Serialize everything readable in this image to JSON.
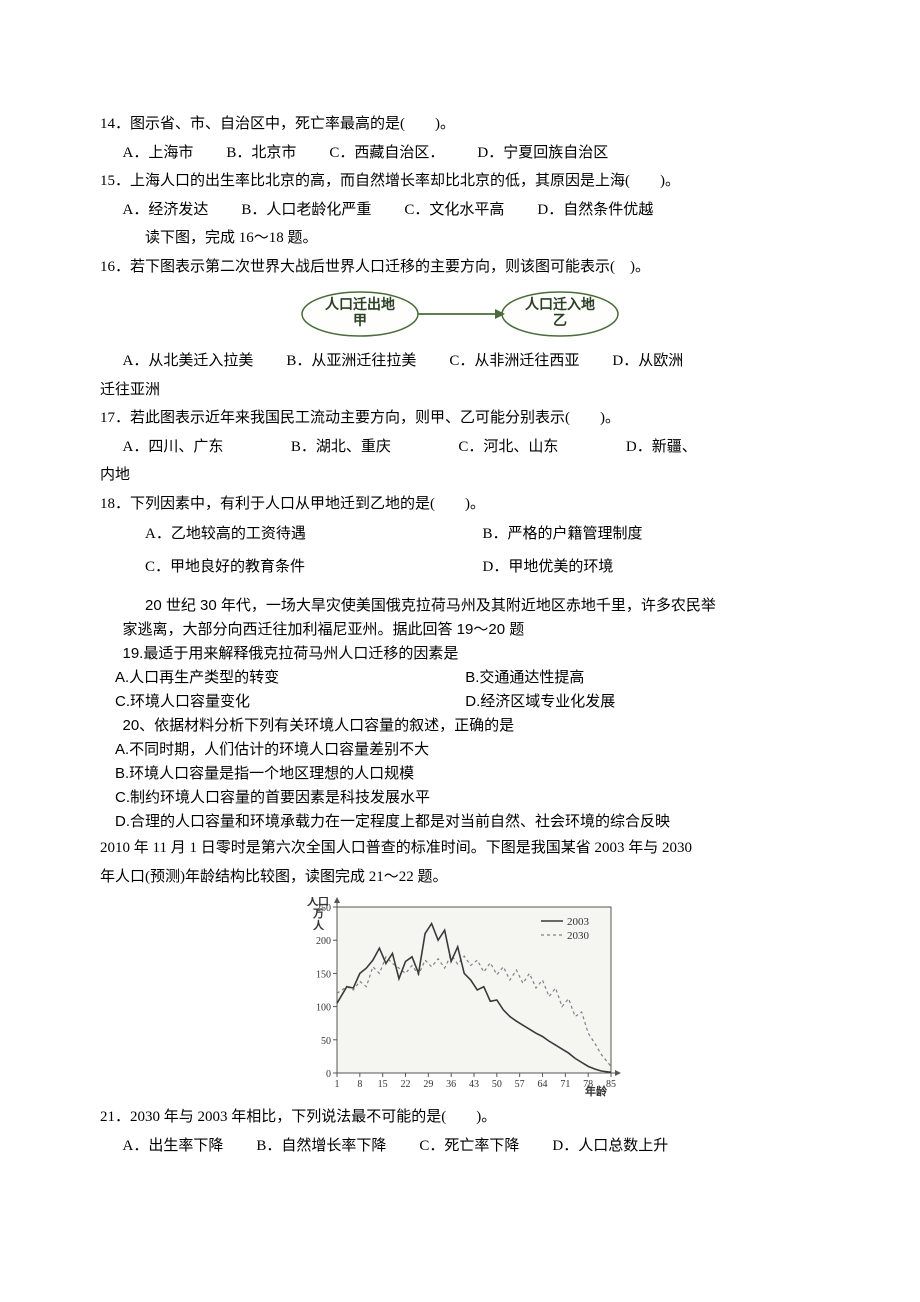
{
  "q14": {
    "text": "14．图示省、市、自治区中，死亡率最高的是(　　)。",
    "opts": [
      "A．上海市",
      "B．北京市",
      "C．西藏自治区．",
      "D．宁夏回族自治区"
    ]
  },
  "q15": {
    "text": "15．上海人口的出生率比北京的高，而自然增长率却比北京的低，其原因是上海(　　)。",
    "opts": [
      "A．经济发达",
      "B．人口老龄化严重",
      "C．文化水平高",
      "D．自然条件优越"
    ]
  },
  "lead16": "读下图，完成 16～18 题。",
  "q16": {
    "text": "16．若下图表示第二次世界大战后世界人口迁移的主要方向，则该图可能表示(　)。",
    "opts": [
      "A．从北美迁入拉美",
      "B．从亚洲迁往拉美",
      "C．从非洲迁往西亚",
      "D．从欧洲"
    ],
    "opts_tail": "迁往亚洲"
  },
  "diagram": {
    "left_line1": "人口迁出地",
    "left_line2": "甲",
    "right_line1": "人口迁入地",
    "right_line2": "乙",
    "border_color": "#4a6b3a",
    "text_color": "#2a3f24"
  },
  "q17": {
    "text": "17．若此图表示近年来我国民工流动主要方向，则甲、乙可能分别表示(　　)。",
    "opts": [
      "A．四川、广东",
      "B．湖北、重庆",
      "C．河北、山东",
      "D．新疆、"
    ],
    "opts_tail": "内地"
  },
  "q18": {
    "text": "18．下列因素中，有利于人口从甲地迁到乙地的是(　　)。",
    "opts": [
      "A．乙地较高的工资待遇",
      "B．严格的户籍管理制度",
      "C．甲地良好的教育条件",
      "D．甲地优美的环境"
    ]
  },
  "passage19": {
    "line1": "20 世纪 30 年代，一场大旱灾使美国俄克拉荷马州及其附近地区赤地千里，许多农民举",
    "line2": "家逃离，大部分向西迁往加利福尼亚州。据此回答 19～20 题"
  },
  "q19": {
    "text": "19.最适于用来解释俄克拉荷马州人口迁移的因素是",
    "opts": [
      "A.人口再生产类型的转变",
      "B.交通通达性提高",
      "C.环境人口容量变化",
      "D.经济区域专业化发展"
    ]
  },
  "q20": {
    "text": "20、依据材料分析下列有关环境人口容量的叙述，正确的是",
    "opts": [
      "A.不同时期，人们估计的环境人口容量差别不大",
      "B.环境人口容量是指一个地区理想的人口规模",
      "C.制约环境人口容量的首要因素是科技发展水平",
      "D.合理的人口容量和环境承载力在一定程度上都是对当前自然、社会环境的综合反映"
    ]
  },
  "lead21": {
    "line1": "2010 年 11 月 1 日零时是第六次全国人口普查的标准时间。下图是我国某省 2003 年与 2030",
    "line2": "年人口(预测)年龄结构比较图，读图完成 21～22 题。"
  },
  "chart": {
    "y_label_l1": "人口",
    "y_label_l2": "万",
    "y_label_l3": "人",
    "x_label": "年龄",
    "legend_2003": "2003",
    "legend_2030": "2030",
    "x_ticks": [
      "1",
      "8",
      "15",
      "22",
      "29",
      "36",
      "43",
      "50",
      "57",
      "64",
      "71",
      "78",
      "85"
    ],
    "y_ticks": [
      "0",
      "50",
      "100",
      "150",
      "200",
      "250"
    ],
    "ylim": [
      0,
      250
    ],
    "xlim": [
      1,
      85
    ],
    "axis_color": "#555555",
    "grid_color": "#e6e6e6",
    "line_2003_color": "#3a3a3a",
    "line_2030_color": "#808080",
    "line_2003_width": 1.6,
    "line_2030_width": 1.2,
    "line_2030_dash": "3,3",
    "series_2003": [
      [
        1,
        105
      ],
      [
        4,
        130
      ],
      [
        6,
        128
      ],
      [
        8,
        150
      ],
      [
        10,
        158
      ],
      [
        12,
        170
      ],
      [
        14,
        188
      ],
      [
        16,
        165
      ],
      [
        18,
        180
      ],
      [
        20,
        142
      ],
      [
        22,
        168
      ],
      [
        24,
        175
      ],
      [
        26,
        150
      ],
      [
        28,
        210
      ],
      [
        30,
        225
      ],
      [
        32,
        200
      ],
      [
        34,
        215
      ],
      [
        36,
        168
      ],
      [
        38,
        190
      ],
      [
        40,
        150
      ],
      [
        42,
        140
      ],
      [
        44,
        125
      ],
      [
        46,
        130
      ],
      [
        48,
        108
      ],
      [
        50,
        110
      ],
      [
        52,
        95
      ],
      [
        54,
        85
      ],
      [
        56,
        78
      ],
      [
        58,
        72
      ],
      [
        60,
        66
      ],
      [
        62,
        60
      ],
      [
        64,
        55
      ],
      [
        66,
        48
      ],
      [
        68,
        42
      ],
      [
        70,
        36
      ],
      [
        72,
        30
      ],
      [
        74,
        22
      ],
      [
        76,
        16
      ],
      [
        78,
        10
      ],
      [
        80,
        6
      ],
      [
        82,
        3
      ],
      [
        85,
        1
      ]
    ],
    "series_2030": [
      [
        1,
        120
      ],
      [
        4,
        130
      ],
      [
        6,
        125
      ],
      [
        8,
        138
      ],
      [
        10,
        130
      ],
      [
        12,
        160
      ],
      [
        14,
        150
      ],
      [
        16,
        175
      ],
      [
        18,
        165
      ],
      [
        20,
        158
      ],
      [
        22,
        150
      ],
      [
        24,
        162
      ],
      [
        26,
        148
      ],
      [
        28,
        170
      ],
      [
        30,
        160
      ],
      [
        32,
        172
      ],
      [
        34,
        158
      ],
      [
        36,
        178
      ],
      [
        38,
        164
      ],
      [
        40,
        176
      ],
      [
        42,
        162
      ],
      [
        44,
        170
      ],
      [
        46,
        152
      ],
      [
        48,
        166
      ],
      [
        50,
        148
      ],
      [
        52,
        160
      ],
      [
        54,
        140
      ],
      [
        56,
        155
      ],
      [
        58,
        135
      ],
      [
        60,
        150
      ],
      [
        62,
        128
      ],
      [
        64,
        140
      ],
      [
        66,
        115
      ],
      [
        68,
        128
      ],
      [
        70,
        100
      ],
      [
        72,
        112
      ],
      [
        74,
        85
      ],
      [
        76,
        92
      ],
      [
        78,
        60
      ],
      [
        80,
        45
      ],
      [
        82,
        28
      ],
      [
        85,
        10
      ]
    ],
    "title_fontsize": 12,
    "tick_fontsize": 10,
    "background_color": "#f5f5f2"
  },
  "q21": {
    "text": "21．2030 年与 2003 年相比，下列说法最不可能的是(　　)。",
    "opts": [
      "A．出生率下降",
      "B．自然增长率下降",
      "C．死亡率下降",
      "D．人口总数上升"
    ]
  }
}
